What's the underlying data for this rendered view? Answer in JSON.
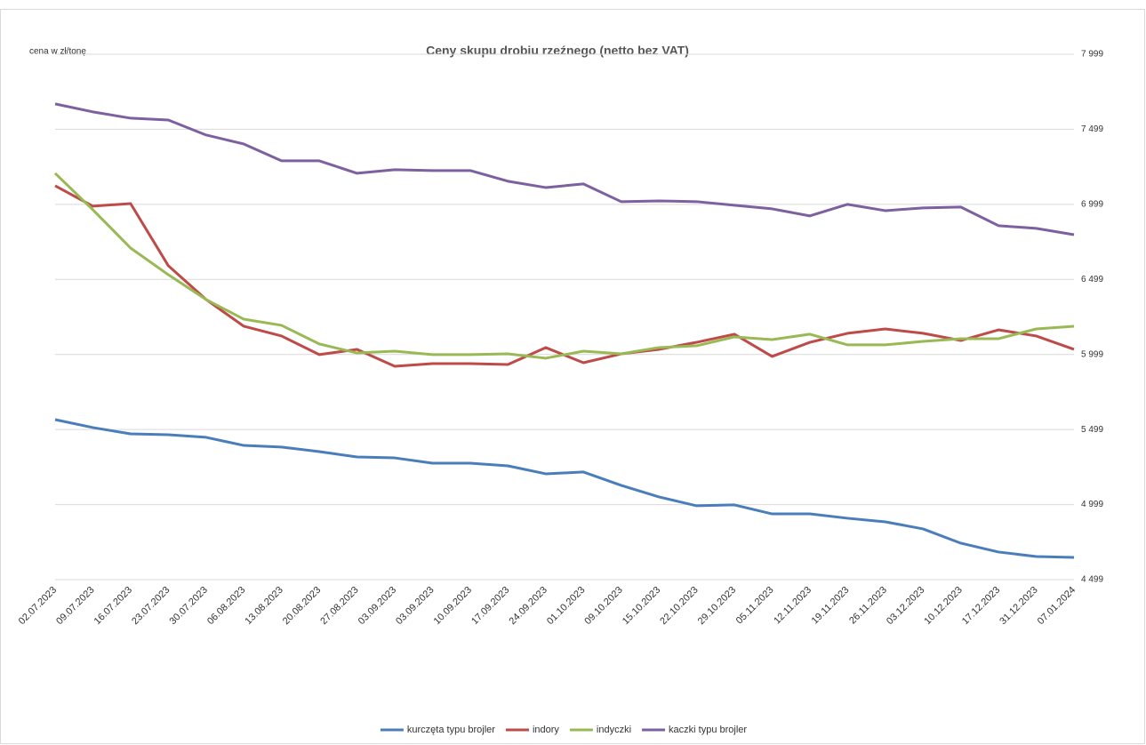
{
  "chart_data": {
    "type": "line",
    "title": "Ceny skupu drobiu rzeźnego (netto bez VAT)",
    "y_axis_label": "cena w zł/tonę",
    "categories": [
      "02.07.2023",
      "09.07.2023",
      "16.07.2023",
      "23.07.2023",
      "30.07.2023",
      "06.08.2023",
      "13.08.2023",
      "20.08.2023",
      "27.08.2023",
      "03.09.2023",
      "03.09.2023",
      "10.09.2023",
      "17.09.2023",
      "24.09.2023",
      "01.10.2023",
      "09.10.2023",
      "15.10.2023",
      "22.10.2023",
      "29.10.2023",
      "05.11.2023",
      "12.11.2023",
      "19.11.2023",
      "26.11.2023",
      "03.12.2023",
      "10.12.2023",
      "17.12.2023",
      "31.12.2023",
      "07.01.2024"
    ],
    "series": [
      {
        "name": "kurczęta typu brojler",
        "color": "#4a7ebb",
        "values": [
          5565,
          5512,
          5470,
          5464,
          5447,
          5393,
          5382,
          5352,
          5316,
          5310,
          5275,
          5275,
          5257,
          5204,
          5216,
          5127,
          5050,
          4991,
          4997,
          4937,
          4937,
          4908,
          4884,
          4837,
          4742,
          4683,
          4653,
          4647
        ]
      },
      {
        "name": "indory",
        "color": "#be4b48",
        "values": [
          7123,
          6987,
          7004,
          6590,
          6365,
          6187,
          6122,
          5998,
          6033,
          5920,
          5938,
          5938,
          5932,
          6045,
          5944,
          6003,
          6033,
          6080,
          6134,
          5986,
          6080,
          6140,
          6169,
          6140,
          6092,
          6163,
          6122,
          6033
        ]
      },
      {
        "name": "indyczki",
        "color": "#98b954",
        "values": [
          7206,
          6963,
          6708,
          6530,
          6365,
          6234,
          6193,
          6069,
          6009,
          6021,
          5998,
          5998,
          6003,
          5974,
          6021,
          6003,
          6045,
          6057,
          6116,
          6098,
          6134,
          6063,
          6063,
          6086,
          6104,
          6104,
          6169,
          6187
        ]
      },
      {
        "name": "kaczki typu brojler",
        "color": "#7d60a0",
        "values": [
          7668,
          7615,
          7573,
          7561,
          7461,
          7401,
          7289,
          7289,
          7206,
          7230,
          7224,
          7224,
          7153,
          7111,
          7135,
          7017,
          7022,
          7017,
          6993,
          6969,
          6922,
          6999,
          6957,
          6975,
          6981,
          6857,
          6839,
          6797
        ]
      }
    ],
    "ylim": [
      4499,
      7999
    ],
    "yticks": [
      {
        "value": 4499,
        "label": "4 499"
      },
      {
        "value": 4999,
        "label": "4 999"
      },
      {
        "value": 5499,
        "label": "5 499"
      },
      {
        "value": 5999,
        "label": "5 999"
      },
      {
        "value": 6499,
        "label": "6 499"
      },
      {
        "value": 6999,
        "label": "6 999"
      },
      {
        "value": 7499,
        "label": "7 499"
      },
      {
        "value": 7999,
        "label": "7 999"
      }
    ],
    "grid": true,
    "legend": "bottom"
  }
}
